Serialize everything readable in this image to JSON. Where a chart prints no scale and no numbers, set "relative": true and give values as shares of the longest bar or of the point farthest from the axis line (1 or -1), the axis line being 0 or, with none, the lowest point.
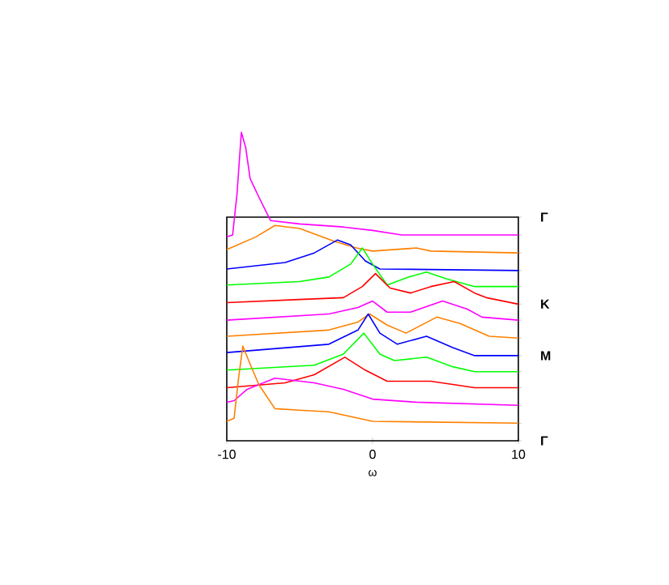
{
  "chart_data": {
    "type": "line",
    "relative": true,
    "xlabel": "ω",
    "xlim": [
      -10,
      10
    ],
    "xticks": [
      -10,
      0,
      10
    ],
    "annotations": [
      "Γ",
      "K",
      "M",
      "Γ"
    ],
    "series": [
      {
        "color": "#ff00ff",
        "x": [
          -10,
          -9.6,
          -9.3,
          -9.0,
          -8.7,
          -8.4,
          -7.8,
          -7.0,
          -5,
          -2,
          0,
          2,
          10
        ],
        "values": [
          0.661,
          0.667,
          0.8,
          1.0,
          0.95,
          0.85,
          0.79,
          0.714,
          0.703,
          0.693,
          0.682,
          0.667,
          0.667
        ]
      },
      {
        "color": "#ff8000",
        "x": [
          -10,
          -8,
          -6.7,
          -5,
          -2.6,
          -1.1,
          0,
          3,
          4,
          10
        ],
        "values": [
          0.62,
          0.661,
          0.698,
          0.688,
          0.646,
          0.625,
          0.615,
          0.625,
          0.615,
          0.609
        ]
      },
      {
        "color": "#0000ff",
        "x": [
          -10,
          -6,
          -4,
          -2.4,
          -1.5,
          -0.5,
          0.5,
          10
        ],
        "values": [
          0.557,
          0.578,
          0.609,
          0.651,
          0.635,
          0.583,
          0.557,
          0.552
        ]
      },
      {
        "color": "#00ff00",
        "x": [
          -10,
          -5,
          -3,
          -1.5,
          -0.7,
          0,
          1,
          2.5,
          3.7,
          5,
          7,
          10
        ],
        "values": [
          0.505,
          0.516,
          0.531,
          0.573,
          0.625,
          0.573,
          0.505,
          0.531,
          0.547,
          0.526,
          0.5,
          0.5
        ]
      },
      {
        "color": "#ff0000",
        "x": [
          -10,
          -5,
          -2,
          -0.7,
          0.2,
          1.2,
          2.6,
          4,
          5.6,
          7,
          7.8,
          10
        ],
        "values": [
          0.448,
          0.458,
          0.464,
          0.5,
          0.542,
          0.495,
          0.479,
          0.5,
          0.516,
          0.479,
          0.464,
          0.443
        ]
      },
      {
        "color": "#ff00ff",
        "x": [
          -10,
          -3,
          -1,
          0,
          1,
          2.6,
          4.8,
          6.5,
          7.5,
          10
        ],
        "values": [
          0.391,
          0.411,
          0.432,
          0.453,
          0.417,
          0.417,
          0.453,
          0.427,
          0.401,
          0.391
        ]
      },
      {
        "color": "#ff8000",
        "x": [
          -10,
          -3,
          -1,
          -0.2,
          1,
          2.3,
          4.4,
          6,
          8,
          10
        ],
        "values": [
          0.339,
          0.359,
          0.385,
          0.411,
          0.375,
          0.349,
          0.401,
          0.38,
          0.339,
          0.333
        ]
      },
      {
        "color": "#0000ff",
        "x": [
          -10,
          -3,
          -1,
          -0.3,
          0.5,
          1.7,
          3.7,
          5.5,
          7,
          10
        ],
        "values": [
          0.286,
          0.313,
          0.359,
          0.411,
          0.349,
          0.313,
          0.339,
          0.302,
          0.276,
          0.276
        ]
      },
      {
        "color": "#00ff00",
        "x": [
          -10,
          -4,
          -2,
          -0.6,
          0.5,
          1.5,
          3.7,
          5.5,
          7,
          10
        ],
        "values": [
          0.229,
          0.245,
          0.281,
          0.349,
          0.281,
          0.26,
          0.271,
          0.24,
          0.224,
          0.224
        ]
      },
      {
        "color": "#ff0000",
        "x": [
          -10,
          -6,
          -4,
          -1.9,
          -0.5,
          1,
          4,
          7,
          10
        ],
        "values": [
          0.172,
          0.188,
          0.214,
          0.271,
          0.229,
          0.193,
          0.193,
          0.172,
          0.172
        ]
      },
      {
        "color": "#ff00ff",
        "x": [
          -10,
          -9.5,
          -8.6,
          -6.7,
          -4,
          -2,
          0,
          3,
          10
        ],
        "values": [
          0.125,
          0.13,
          0.167,
          0.203,
          0.188,
          0.167,
          0.135,
          0.125,
          0.115
        ]
      },
      {
        "color": "#ff8000",
        "x": [
          -10,
          -9.5,
          -9.2,
          -8.9,
          -8.5,
          -7.8,
          -6.7,
          -5,
          -3,
          0,
          10
        ],
        "values": [
          0.063,
          0.073,
          0.2,
          0.307,
          0.26,
          0.182,
          0.104,
          0.099,
          0.094,
          0.063,
          0.057
        ]
      }
    ]
  }
}
